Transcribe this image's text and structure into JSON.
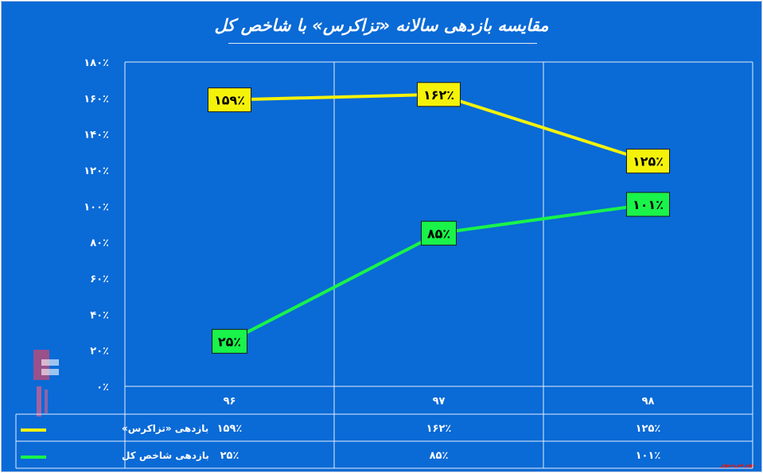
{
  "title": "مقایسه بازدهی سالانه «تزاکرس» با شاخص کل",
  "source_note": "بورس‌نیوز",
  "colors": {
    "background": "#0a6ad6",
    "series_1": "#f5f20a",
    "series_2": "#19f34a",
    "grid": "#e6eefb",
    "text": "#ffffff",
    "label_text": "#000000"
  },
  "chart_data": {
    "type": "line",
    "categories": [
      "۹۶",
      "۹۷",
      "۹۸"
    ],
    "y_tick_labels": [
      "۰٪",
      "۲۰٪",
      "۴۰٪",
      "۶۰٪",
      "۸۰٪",
      "۱۰۰٪",
      "۱۲۰٪",
      "۱۴۰٪",
      "۱۶۰٪",
      "۱۸۰٪"
    ],
    "ylim": [
      0,
      180
    ],
    "grid": true,
    "legend": "data-table",
    "series": [
      {
        "name": "بازدهی «تزاکرس»",
        "values": [
          159,
          162,
          125
        ],
        "labels": [
          "۱۵۹٪",
          "۱۶۲٪",
          "۱۲۵٪"
        ],
        "color": "#f5f20a"
      },
      {
        "name": "بازدهی شاخص کل",
        "values": [
          25,
          85,
          101
        ],
        "labels": [
          "۲۵٪",
          "۸۵٪",
          "۱۰۱٪"
        ],
        "color": "#19f34a"
      }
    ]
  }
}
